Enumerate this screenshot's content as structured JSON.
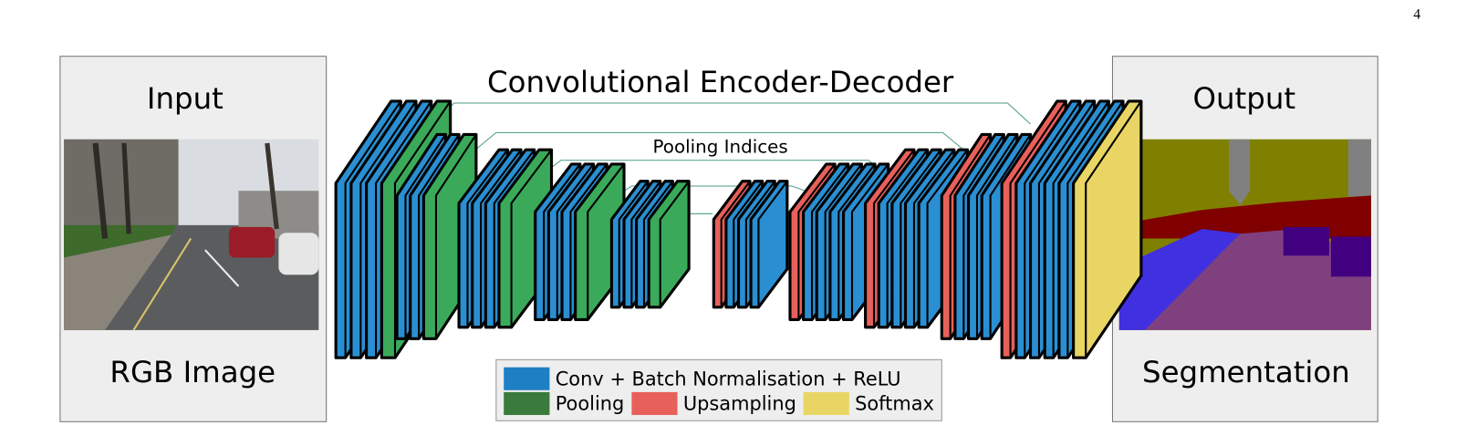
{
  "page_number": "4",
  "input": {
    "title": "Input",
    "caption": "RGB Image"
  },
  "network": {
    "title": "Convolutional Encoder-Decoder",
    "annotation": "Pooling Indices"
  },
  "legend": [
    {
      "label": "Conv + Batch Normalisation + ReLU",
      "color": "#1f7fc4"
    },
    {
      "label": "Pooling",
      "color": "#3a7a3c"
    },
    {
      "label": "Upsampling",
      "color": "#e8605a"
    },
    {
      "label": "Softmax",
      "color": "#e9d564"
    }
  ],
  "output": {
    "title": "Output",
    "caption": "Segmentation"
  }
}
